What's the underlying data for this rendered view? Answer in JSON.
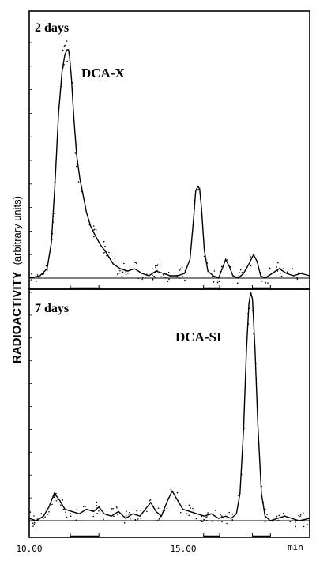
{
  "chart_data": {
    "type": "line",
    "ylabel": "RADIOACTIVITY",
    "ylabel_units": "(arbitrary units)",
    "x_unit": "min",
    "xlim": [
      10.0,
      17.85
    ],
    "x_ticks": [
      "10.00",
      "15.00",
      "min"
    ],
    "panels": [
      {
        "label": "2 days",
        "ylim": [
          0,
          100
        ],
        "peaks": [
          {
            "name": "DCA-X",
            "x": 11.1,
            "height": 97
          },
          {
            "x": 14.7,
            "height": 40
          },
          {
            "x": 15.5,
            "height": 8
          },
          {
            "x": 16.3,
            "height": 10
          }
        ],
        "series": {
          "x": [
            10.0,
            10.3,
            10.5,
            10.62,
            10.72,
            10.82,
            10.92,
            11.0,
            11.06,
            11.1,
            11.13,
            11.18,
            11.25,
            11.33,
            11.42,
            11.5,
            11.6,
            11.72,
            11.85,
            12.0,
            12.15,
            12.35,
            12.55,
            12.75,
            12.95,
            13.15,
            13.35,
            13.55,
            13.75,
            13.95,
            14.15,
            14.35,
            14.5,
            14.6,
            14.66,
            14.72,
            14.77,
            14.82,
            14.9,
            15.0,
            15.15,
            15.3,
            15.4,
            15.5,
            15.6,
            15.7,
            15.85,
            16.0,
            16.15,
            16.28,
            16.38,
            16.48,
            16.6,
            16.8,
            17.0,
            17.2,
            17.4,
            17.6,
            17.85
          ],
          "y": [
            0,
            1,
            4,
            15,
            40,
            70,
            88,
            95,
            97,
            97,
            94,
            85,
            68,
            52,
            42,
            36,
            28,
            22,
            18,
            14,
            11,
            6,
            4,
            3,
            4,
            2,
            1,
            3,
            2,
            1,
            1,
            2,
            8,
            25,
            37,
            39,
            38,
            30,
            12,
            3,
            1,
            0,
            4,
            8,
            5,
            1,
            0,
            2,
            6,
            10,
            7,
            1,
            0,
            2,
            4,
            2,
            1,
            2,
            1
          ]
        }
      },
      {
        "label": "7 days",
        "ylim": [
          0,
          100
        ],
        "peaks": [
          {
            "x": 10.7,
            "height": 12
          },
          {
            "x": 11.9,
            "height": 6
          },
          {
            "x": 13.4,
            "height": 8
          },
          {
            "x": 14.0,
            "height": 13
          },
          {
            "name": "DCA-SI",
            "x": 16.2,
            "height": 100
          }
        ],
        "series": {
          "x": [
            10.0,
            10.2,
            10.4,
            10.55,
            10.7,
            10.85,
            11.0,
            11.2,
            11.4,
            11.6,
            11.8,
            11.95,
            12.1,
            12.3,
            12.5,
            12.7,
            12.9,
            13.1,
            13.25,
            13.4,
            13.55,
            13.7,
            13.85,
            14.0,
            14.15,
            14.3,
            14.5,
            14.7,
            14.9,
            15.1,
            15.3,
            15.5,
            15.65,
            15.8,
            15.9,
            16.0,
            16.08,
            16.15,
            16.2,
            16.25,
            16.32,
            16.4,
            16.5,
            16.6,
            16.75,
            16.95,
            17.15,
            17.35,
            17.55,
            17.85
          ],
          "y": [
            1,
            0,
            2,
            6,
            12,
            9,
            5,
            4,
            3,
            5,
            4,
            6,
            3,
            2,
            4,
            1,
            3,
            2,
            5,
            8,
            4,
            2,
            8,
            13,
            9,
            5,
            4,
            3,
            2,
            3,
            1,
            2,
            1,
            3,
            12,
            40,
            75,
            95,
            100,
            97,
            75,
            42,
            12,
            2,
            0,
            1,
            2,
            1,
            0,
            1
          ]
        }
      }
    ],
    "peak_labels": [
      "DCA-X",
      "DCA-SI"
    ],
    "grid": false,
    "legend": "none"
  }
}
